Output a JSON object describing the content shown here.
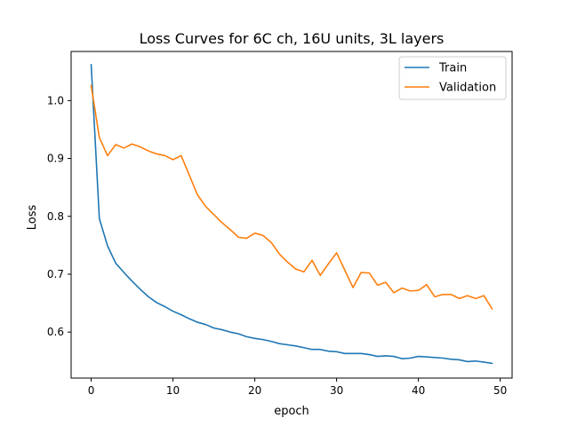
{
  "chart_data": {
    "type": "line",
    "title": "Loss Curves for 6C ch, 16U units, 3L layers",
    "xlabel": "epoch",
    "ylabel": "Loss",
    "xlim": [
      -2.45,
      51.45
    ],
    "ylim": [
      0.5205,
      1.0849
    ],
    "xticks": [
      0,
      10,
      20,
      30,
      40,
      50
    ],
    "yticks": [
      0.6,
      0.7,
      0.8,
      0.9,
      1.0
    ],
    "ytick_labels": [
      "0.6",
      "0.7",
      "0.8",
      "0.9",
      "1.0"
    ],
    "legend_position": "top-right",
    "grid": false,
    "x": [
      0,
      1,
      2,
      3,
      4,
      5,
      6,
      7,
      8,
      9,
      10,
      11,
      12,
      13,
      14,
      15,
      16,
      17,
      18,
      19,
      20,
      21,
      22,
      23,
      24,
      25,
      26,
      27,
      28,
      29,
      30,
      31,
      32,
      33,
      34,
      35,
      36,
      37,
      38,
      39,
      40,
      41,
      42,
      43,
      44,
      45,
      46,
      47,
      48,
      49
    ],
    "series": [
      {
        "name": "Train",
        "color": "#1f77b4",
        "values": [
          1.062,
          0.796,
          0.749,
          0.719,
          0.703,
          0.688,
          0.674,
          0.661,
          0.651,
          0.644,
          0.636,
          0.63,
          0.623,
          0.617,
          0.613,
          0.607,
          0.604,
          0.6,
          0.597,
          0.592,
          0.589,
          0.587,
          0.584,
          0.58,
          0.578,
          0.576,
          0.573,
          0.57,
          0.57,
          0.567,
          0.566,
          0.563,
          0.563,
          0.563,
          0.561,
          0.558,
          0.559,
          0.558,
          0.554,
          0.555,
          0.558,
          0.557,
          0.556,
          0.555,
          0.553,
          0.552,
          0.549,
          0.55,
          0.548,
          0.546
        ]
      },
      {
        "name": "Validation",
        "color": "#ff7f0e",
        "values": [
          1.026,
          0.936,
          0.905,
          0.924,
          0.918,
          0.925,
          0.92,
          0.913,
          0.908,
          0.905,
          0.898,
          0.905,
          0.871,
          0.837,
          0.817,
          0.803,
          0.789,
          0.777,
          0.764,
          0.762,
          0.771,
          0.767,
          0.755,
          0.735,
          0.721,
          0.709,
          0.704,
          0.724,
          0.698,
          0.718,
          0.737,
          0.707,
          0.677,
          0.703,
          0.702,
          0.681,
          0.686,
          0.668,
          0.676,
          0.671,
          0.672,
          0.682,
          0.661,
          0.665,
          0.665,
          0.658,
          0.663,
          0.658,
          0.663,
          0.64
        ]
      }
    ]
  }
}
